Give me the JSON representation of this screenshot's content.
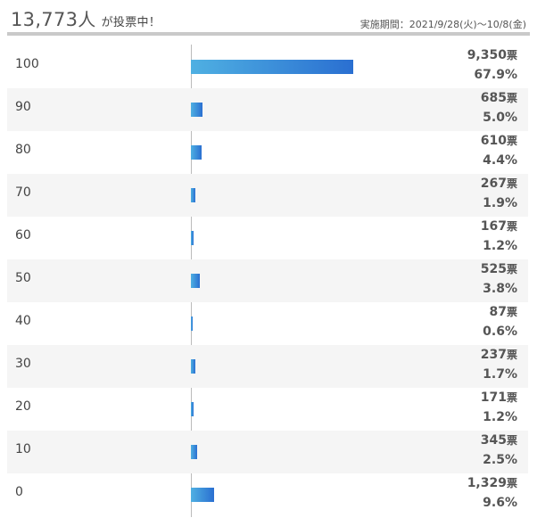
{
  "header": {
    "voter_count": "13,773",
    "voter_unit": "人",
    "voting_suffix": "が投票中！",
    "period": "実施期間：2021/9/28(火)〜10/8(金)"
  },
  "chart_data": {
    "type": "bar",
    "orientation": "horizontal",
    "vote_unit": "票",
    "categories": [
      "100",
      "90",
      "80",
      "70",
      "60",
      "50",
      "40",
      "30",
      "20",
      "10",
      "0"
    ],
    "votes": [
      9350,
      685,
      610,
      267,
      167,
      525,
      87,
      237,
      171,
      345,
      1329
    ],
    "votes_text": [
      "9,350",
      "685",
      "610",
      "267",
      "167",
      "525",
      "87",
      "237",
      "171",
      "345",
      "1,329"
    ],
    "percent_text": [
      "67.9%",
      "5.0%",
      "4.4%",
      "1.9%",
      "1.2%",
      "3.8%",
      "0.6%",
      "1.7%",
      "1.2%",
      "2.5%",
      "9.6%"
    ],
    "bar_color_start": "#4fb0e2",
    "bar_color_end": "#2a6fd1"
  }
}
